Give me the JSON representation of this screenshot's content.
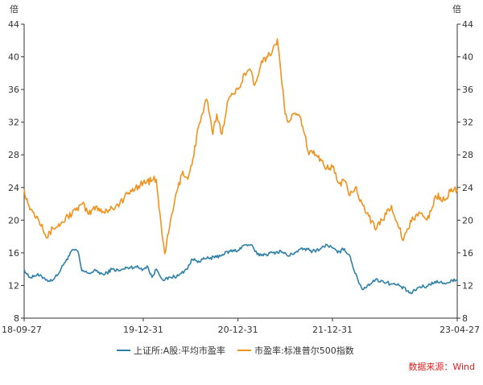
{
  "chart_data": {
    "type": "line",
    "title": "",
    "xlabel": "",
    "ylabel_left": "倍",
    "ylabel_right": "倍",
    "ylim": [
      8,
      44
    ],
    "yticks": [
      8,
      12,
      16,
      20,
      24,
      28,
      32,
      36,
      40,
      44
    ],
    "xticks": [
      "18-09-27",
      "19-12-31",
      "20-12-31",
      "21-12-31",
      "23-04-27"
    ],
    "xrange": [
      "2018-09-27",
      "2023-04-27"
    ],
    "grid": false,
    "legend_position": "bottom-center",
    "source_note": "数据来源：Wind",
    "series": [
      {
        "name": "上证所:A股:平均市盈率",
        "color": "#2e7fa8",
        "points": [
          [
            "2018-09-27",
            14.0
          ],
          [
            "2018-10-15",
            13.0
          ],
          [
            "2018-11-15",
            13.3
          ],
          [
            "2018-12-15",
            12.9
          ],
          [
            "2019-01-04",
            12.5
          ],
          [
            "2019-02-01",
            13.2
          ],
          [
            "2019-02-25",
            14.5
          ],
          [
            "2019-03-10",
            15.2
          ],
          [
            "2019-04-05",
            16.4
          ],
          [
            "2019-04-22",
            16.2
          ],
          [
            "2019-05-08",
            13.8
          ],
          [
            "2019-06-01",
            13.5
          ],
          [
            "2019-07-01",
            13.8
          ],
          [
            "2019-08-01",
            13.3
          ],
          [
            "2019-09-01",
            14.0
          ],
          [
            "2019-10-01",
            13.8
          ],
          [
            "2019-11-01",
            14.2
          ],
          [
            "2019-12-01",
            14.3
          ],
          [
            "2019-12-31",
            14.0
          ],
          [
            "2020-01-15",
            14.4
          ],
          [
            "2020-02-03",
            13.0
          ],
          [
            "2020-02-20",
            14.0
          ],
          [
            "2020-03-20",
            12.6
          ],
          [
            "2020-04-15",
            13.0
          ],
          [
            "2020-05-15",
            13.2
          ],
          [
            "2020-06-15",
            14.0
          ],
          [
            "2020-07-08",
            15.2
          ],
          [
            "2020-08-01",
            15.0
          ],
          [
            "2020-09-01",
            15.3
          ],
          [
            "2020-10-01",
            15.4
          ],
          [
            "2020-11-01",
            15.8
          ],
          [
            "2020-12-01",
            16.2
          ],
          [
            "2020-12-31",
            16.3
          ],
          [
            "2021-01-20",
            16.9
          ],
          [
            "2021-02-18",
            17.0
          ],
          [
            "2021-03-15",
            15.8
          ],
          [
            "2021-04-15",
            15.8
          ],
          [
            "2021-05-15",
            16.0
          ],
          [
            "2021-06-15",
            16.2
          ],
          [
            "2021-07-15",
            15.6
          ],
          [
            "2021-08-15",
            16.2
          ],
          [
            "2021-09-15",
            16.5
          ],
          [
            "2021-10-15",
            16.2
          ],
          [
            "2021-11-15",
            16.5
          ],
          [
            "2021-12-10",
            17.0
          ],
          [
            "2021-12-31",
            16.6
          ],
          [
            "2022-01-20",
            16.0
          ],
          [
            "2022-02-15",
            16.5
          ],
          [
            "2022-03-10",
            15.5
          ],
          [
            "2022-03-28",
            13.5
          ],
          [
            "2022-04-26",
            11.5
          ],
          [
            "2022-05-15",
            12.0
          ],
          [
            "2022-06-15",
            12.7
          ],
          [
            "2022-07-15",
            12.5
          ],
          [
            "2022-08-15",
            12.2
          ],
          [
            "2022-09-15",
            12.0
          ],
          [
            "2022-10-31",
            11.0
          ],
          [
            "2022-11-30",
            11.8
          ],
          [
            "2022-12-31",
            11.9
          ],
          [
            "2023-01-31",
            12.5
          ],
          [
            "2023-02-28",
            12.3
          ],
          [
            "2023-03-31",
            12.4
          ],
          [
            "2023-04-15",
            12.8
          ],
          [
            "2023-04-27",
            12.6
          ]
        ]
      },
      {
        "name": "市盈率:标准普尔500指数",
        "color": "#f0921e",
        "points": [
          [
            "2018-09-27",
            23.8
          ],
          [
            "2018-10-12",
            22.0
          ],
          [
            "2018-10-30",
            21.0
          ],
          [
            "2018-11-15",
            20.5
          ],
          [
            "2018-12-05",
            19.5
          ],
          [
            "2018-12-24",
            17.8
          ],
          [
            "2019-01-15",
            19.0
          ],
          [
            "2019-02-15",
            19.5
          ],
          [
            "2019-03-15",
            20.5
          ],
          [
            "2019-04-15",
            21.2
          ],
          [
            "2019-05-10",
            22.0
          ],
          [
            "2019-06-03",
            20.7
          ],
          [
            "2019-07-01",
            21.7
          ],
          [
            "2019-08-01",
            21.0
          ],
          [
            "2019-09-01",
            21.5
          ],
          [
            "2019-10-01",
            22.0
          ],
          [
            "2019-11-01",
            23.2
          ],
          [
            "2019-12-01",
            24.0
          ],
          [
            "2019-12-31",
            24.6
          ],
          [
            "2020-02-19",
            25.0
          ],
          [
            "2020-03-01",
            21.5
          ],
          [
            "2020-03-23",
            15.9
          ],
          [
            "2020-04-10",
            19.0
          ],
          [
            "2020-05-01",
            22.5
          ],
          [
            "2020-06-01",
            26.0
          ],
          [
            "2020-06-20",
            25.0
          ],
          [
            "2020-07-10",
            27.5
          ],
          [
            "2020-08-01",
            31.5
          ],
          [
            "2020-08-15",
            33.0
          ],
          [
            "2020-09-01",
            34.8
          ],
          [
            "2020-09-25",
            30.5
          ],
          [
            "2020-10-10",
            33.0
          ],
          [
            "2020-10-30",
            30.5
          ],
          [
            "2020-11-20",
            34.5
          ],
          [
            "2020-12-15",
            35.5
          ],
          [
            "2020-12-31",
            36.0
          ],
          [
            "2021-01-25",
            38.0
          ],
          [
            "2021-02-15",
            38.5
          ],
          [
            "2021-03-05",
            36.5
          ],
          [
            "2021-04-01",
            39.5
          ],
          [
            "2021-04-25",
            40.0
          ],
          [
            "2021-05-25",
            41.5
          ],
          [
            "2021-06-01",
            42.2
          ],
          [
            "2021-06-15",
            38.0
          ],
          [
            "2021-07-01",
            33.0
          ],
          [
            "2021-07-15",
            32.0
          ],
          [
            "2021-08-01",
            33.0
          ],
          [
            "2021-08-31",
            32.5
          ],
          [
            "2021-09-10",
            31.0
          ],
          [
            "2021-10-01",
            28.0
          ],
          [
            "2021-10-20",
            28.5
          ],
          [
            "2021-11-15",
            27.5
          ],
          [
            "2021-12-01",
            26.5
          ],
          [
            "2021-12-31",
            26.5
          ],
          [
            "2022-01-25",
            24.5
          ],
          [
            "2022-02-15",
            24.8
          ],
          [
            "2022-03-08",
            23.0
          ],
          [
            "2022-03-29",
            24.0
          ],
          [
            "2022-04-20",
            22.5
          ],
          [
            "2022-05-20",
            20.5
          ],
          [
            "2022-06-16",
            18.8
          ],
          [
            "2022-07-10",
            20.0
          ],
          [
            "2022-08-16",
            21.8
          ],
          [
            "2022-09-15",
            19.0
          ],
          [
            "2022-09-30",
            17.5
          ],
          [
            "2022-10-12",
            18.5
          ],
          [
            "2022-11-01",
            19.8
          ],
          [
            "2022-11-30",
            21.0
          ],
          [
            "2022-12-15",
            20.5
          ],
          [
            "2022-12-31",
            20.0
          ],
          [
            "2023-01-20",
            21.5
          ],
          [
            "2023-02-02",
            23.0
          ],
          [
            "2023-02-20",
            22.8
          ],
          [
            "2023-03-13",
            22.5
          ],
          [
            "2023-03-31",
            23.5
          ],
          [
            "2023-04-15",
            23.8
          ],
          [
            "2023-04-27",
            23.7
          ]
        ]
      }
    ]
  }
}
